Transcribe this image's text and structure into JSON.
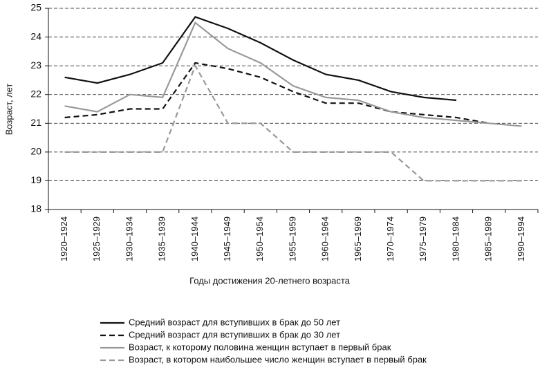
{
  "chart_data": {
    "type": "line",
    "xlabel": "Годы достижения 20-летнего возраста",
    "ylabel": "Возраст, лет",
    "categories": [
      "1920–1924",
      "1925–1929",
      "1930–1934",
      "1935–1939",
      "1940–1944",
      "1945–1949",
      "1950–1954",
      "1955–1959",
      "1960–1964",
      "1965–1969",
      "1970–1974",
      "1975–1979",
      "1980–1984",
      "1985–1989",
      "1990–1994"
    ],
    "series": [
      {
        "name": "Средний возраст для вступивших в брак до 50 лет",
        "color": "#111111",
        "dashed": false,
        "values": [
          22.6,
          22.4,
          22.7,
          23.1,
          24.7,
          24.3,
          23.8,
          23.2,
          22.7,
          22.5,
          22.1,
          21.9,
          21.8,
          null,
          null
        ]
      },
      {
        "name": "Средний возраст для вступивших в брак до 30 лет",
        "color": "#111111",
        "dashed": true,
        "values": [
          21.2,
          21.3,
          21.5,
          21.5,
          23.1,
          22.9,
          22.6,
          22.1,
          21.7,
          21.7,
          21.4,
          21.3,
          21.2,
          21.0,
          null
        ]
      },
      {
        "name": "Возраст, к которому половина женщин вступает в первый брак",
        "color": "#999999",
        "dashed": false,
        "values": [
          21.6,
          21.4,
          22.0,
          21.9,
          24.5,
          23.6,
          23.1,
          22.3,
          21.9,
          21.8,
          21.4,
          21.2,
          21.1,
          21.0,
          20.9
        ]
      },
      {
        "name": "Возраст, в котором наибольшее число женщин вступает в первый брак",
        "color": "#999999",
        "dashed": true,
        "values": [
          20,
          20,
          20,
          20,
          23,
          21,
          21,
          20,
          20,
          20,
          20,
          19,
          19,
          19,
          19
        ]
      }
    ],
    "ylim": [
      18,
      25
    ],
    "yticks": [
      18,
      19,
      20,
      21,
      22,
      23,
      24,
      25
    ],
    "grid": true
  }
}
